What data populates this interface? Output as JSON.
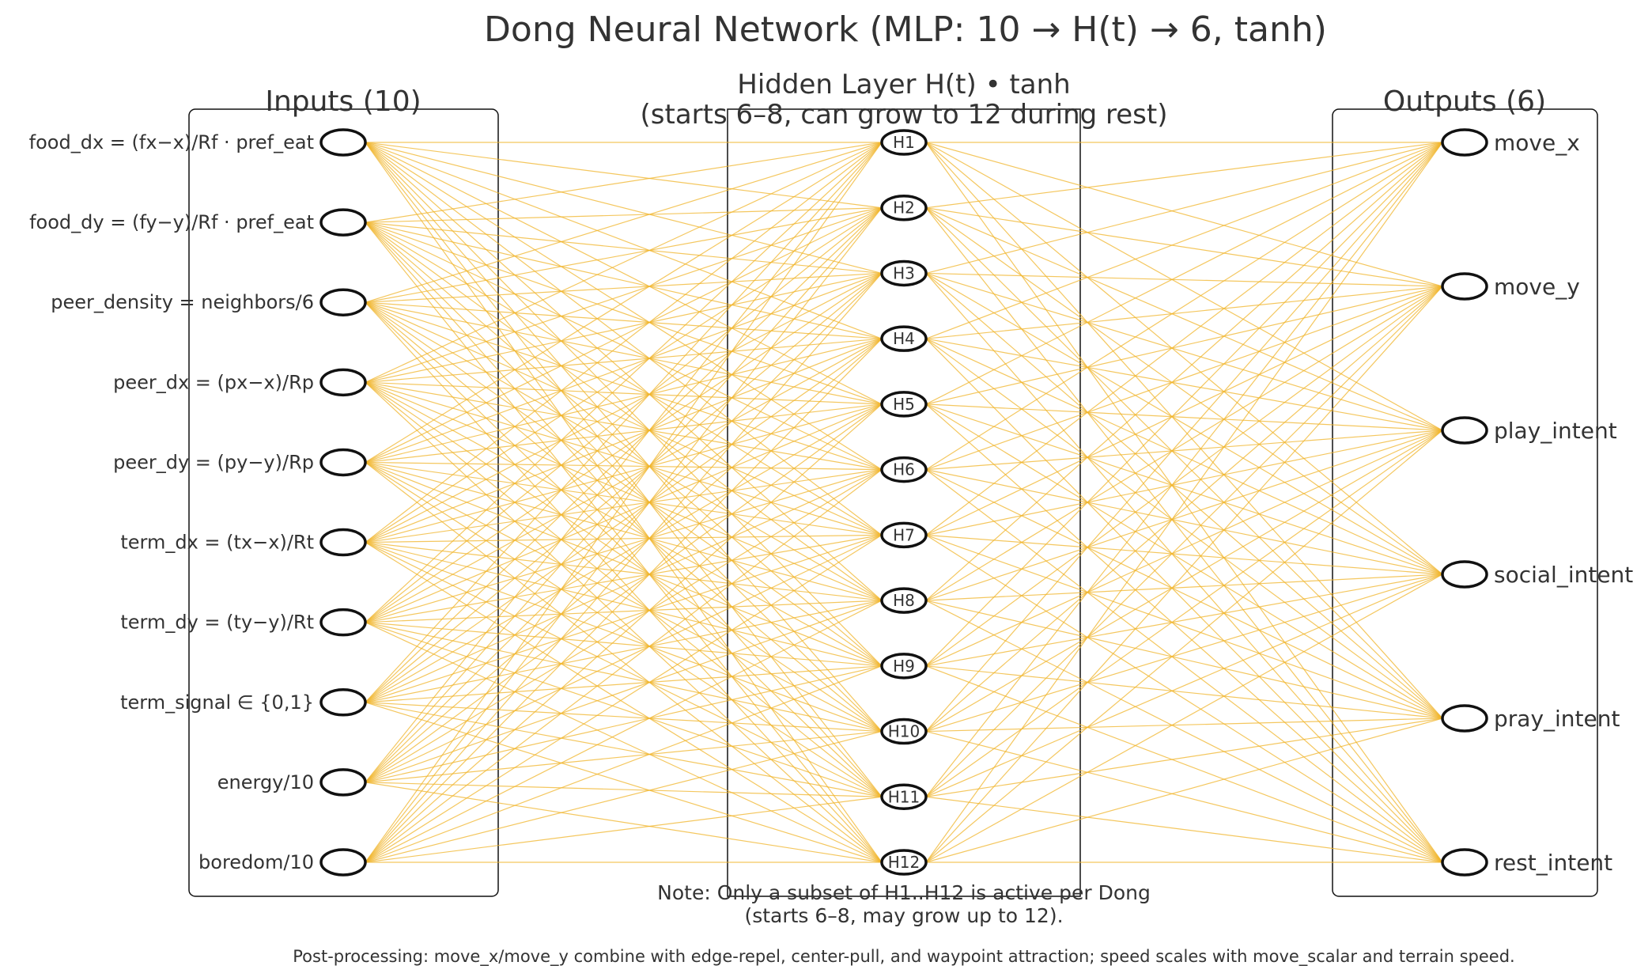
{
  "title": "Dong Neural Network (MLP: 10 → H(t) → 6, tanh)",
  "inputs": {
    "heading": "Inputs (10)",
    "labels": [
      "food_dx = (fx−x)/Rf · pref_eat",
      "food_dy = (fy−y)/Rf · pref_eat",
      "peer_density = neighbors/6",
      "peer_dx = (px−x)/Rp",
      "peer_dy = (py−y)/Rp",
      "term_dx = (tx−x)/Rt",
      "term_dy = (ty−y)/Rt",
      "term_signal ∈ {0,1}",
      "energy/10",
      "boredom/10"
    ]
  },
  "hidden": {
    "heading_line1": "Hidden Layer  H(t)  • tanh",
    "heading_line2": "(starts 6–8, can grow to 12 during rest)",
    "labels": [
      "H1",
      "H2",
      "H3",
      "H4",
      "H5",
      "H6",
      "H7",
      "H8",
      "H9",
      "H10",
      "H11",
      "H12"
    ]
  },
  "outputs": {
    "heading": "Outputs (6)",
    "labels": [
      "move_x",
      "move_y",
      "play_intent",
      "social_intent",
      "pray_intent",
      "rest_intent"
    ]
  },
  "note_line1": "Note: Only a subset of H1..H12 is active per Dong",
  "note_line2": "(starts 6–8, may grow up to 12).",
  "footer": "Post-processing: move_x/move_y combine with edge-repel, center-pull, and waypoint attraction; speed scales with move_scalar and terrain speed.",
  "colors": {
    "edge": "#f0b429",
    "node_stroke": "#111111",
    "text": "#333333",
    "box": "#111111"
  }
}
